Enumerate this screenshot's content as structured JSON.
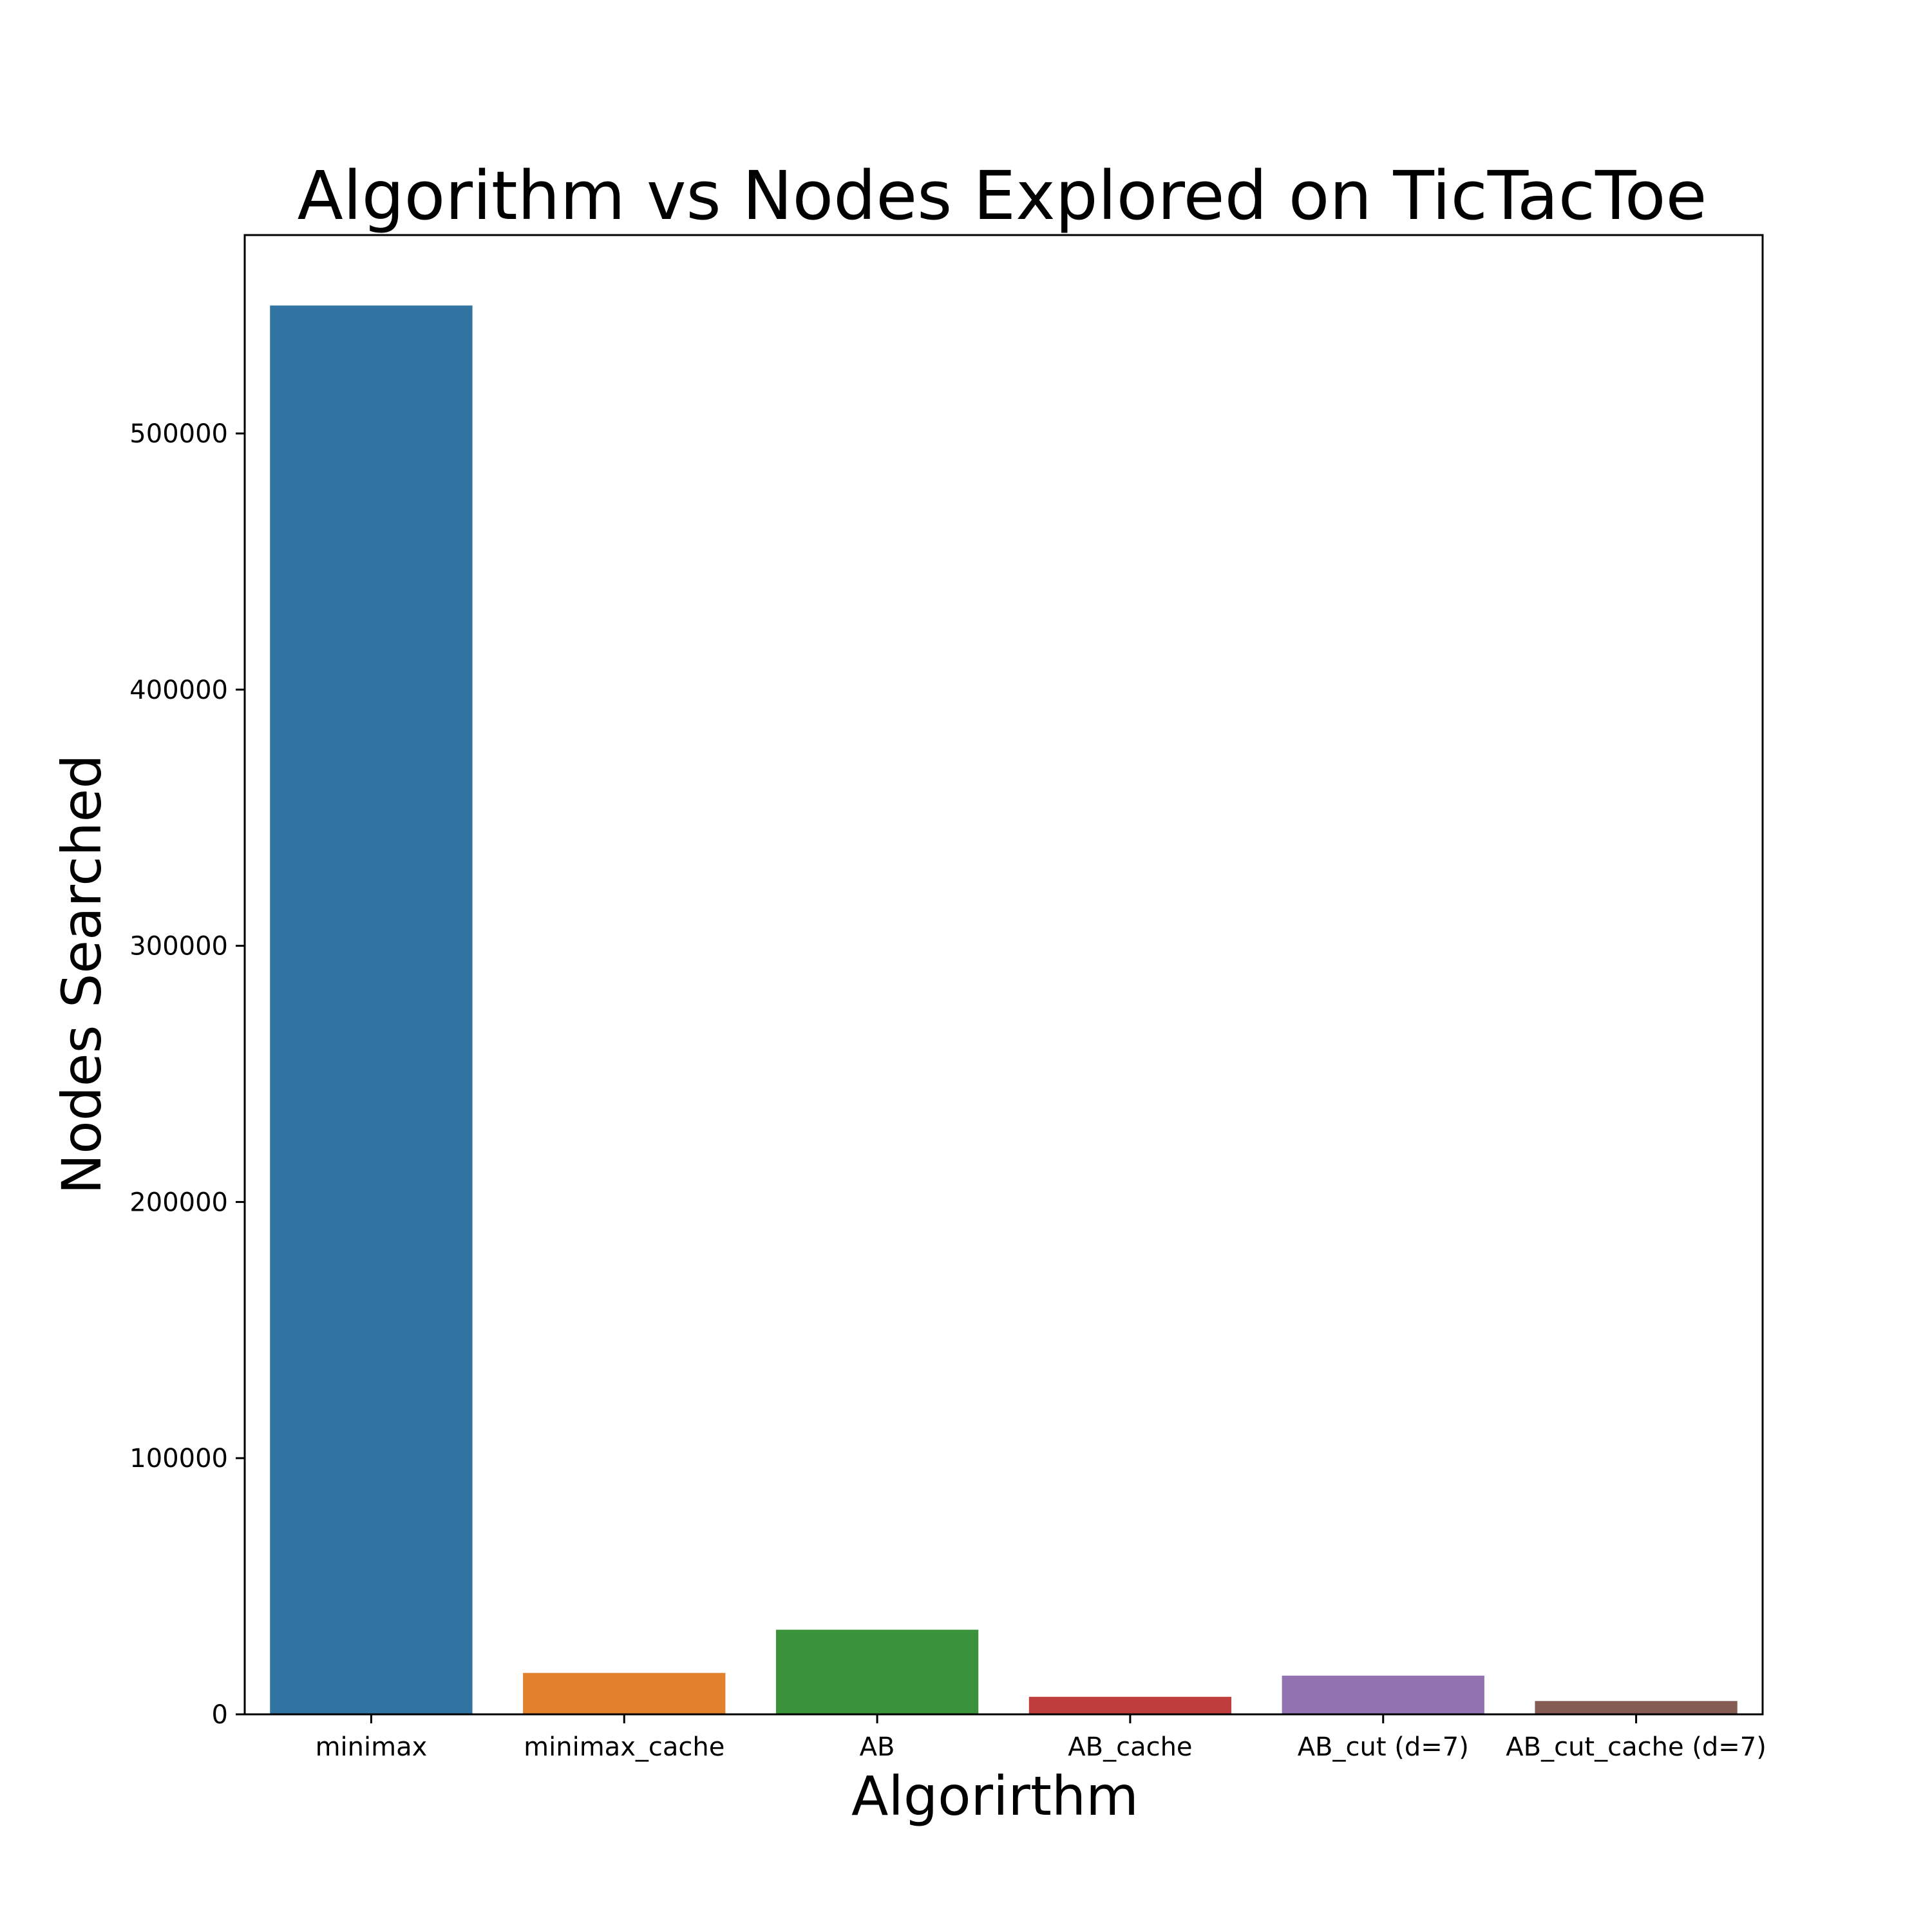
{
  "chart_data": {
    "type": "bar",
    "title": "Algorithm vs Nodes Explored on TicTacToe",
    "xlabel": "Algorirthm",
    "ylabel": "Nodes Searched",
    "categories": [
      "minimax",
      "minimax_cache",
      "AB",
      "AB_cache",
      "AB_cut (d=7)",
      "AB_cut_cache (d=7)"
    ],
    "values": [
      549946,
      16167,
      33027,
      6835,
      15100,
      5193
    ],
    "colors": [
      "#3274a1",
      "#e1812c",
      "#3a923a",
      "#c03d3e",
      "#9372b2",
      "#845b53"
    ],
    "ylim": [
      0,
      577443
    ],
    "yticks": [
      0,
      100000,
      200000,
      300000,
      400000,
      500000
    ],
    "grid": false,
    "legend": "none"
  }
}
